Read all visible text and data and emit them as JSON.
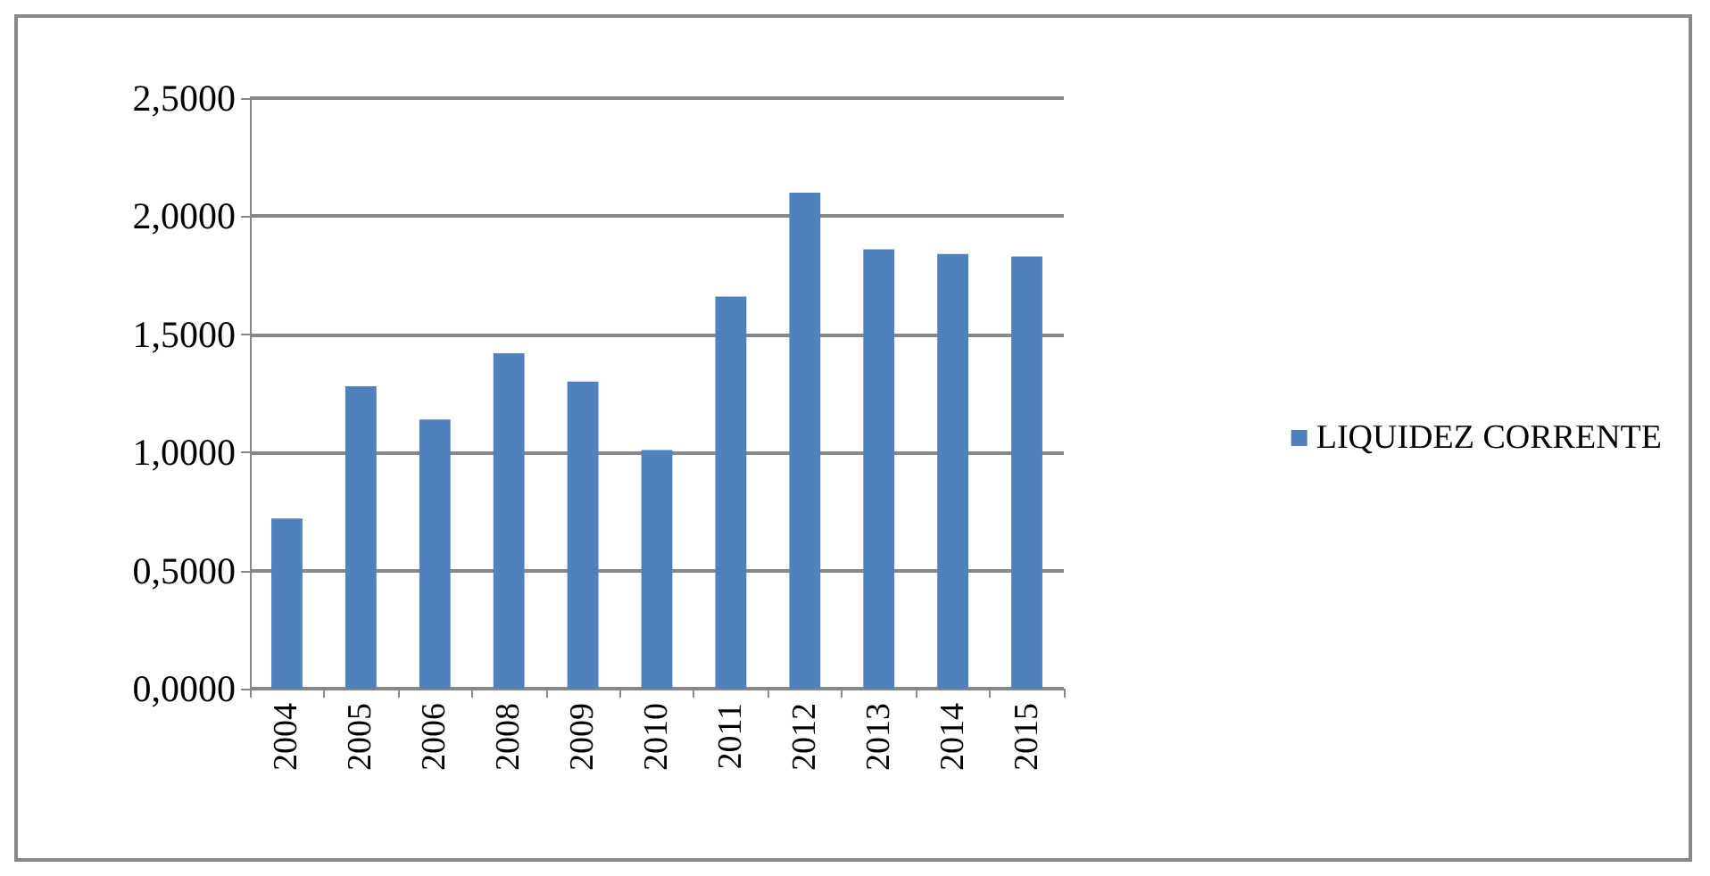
{
  "chart_data": {
    "type": "bar",
    "categories": [
      "2004",
      "2005",
      "2006",
      "2008",
      "2009",
      "2010",
      "2011",
      "2012",
      "2013",
      "2014",
      "2015"
    ],
    "series": [
      {
        "name": "LIQUIDEZ CORRENTE",
        "color": "#4f81bd",
        "values": [
          0.72,
          1.28,
          1.14,
          1.42,
          1.3,
          1.01,
          1.66,
          2.1,
          1.86,
          1.84,
          1.83
        ]
      }
    ],
    "ylim": [
      0,
      2.5
    ],
    "yticks": [
      {
        "value": 0,
        "label": "0,0000"
      },
      {
        "value": 0.5,
        "label": "0,5000"
      },
      {
        "value": 1,
        "label": "1,0000"
      },
      {
        "value": 1.5,
        "label": "1,5000"
      },
      {
        "value": 2,
        "label": "2,0000"
      },
      {
        "value": 2.5,
        "label": "2,5000"
      }
    ],
    "grid": "y",
    "legend": "right"
  }
}
